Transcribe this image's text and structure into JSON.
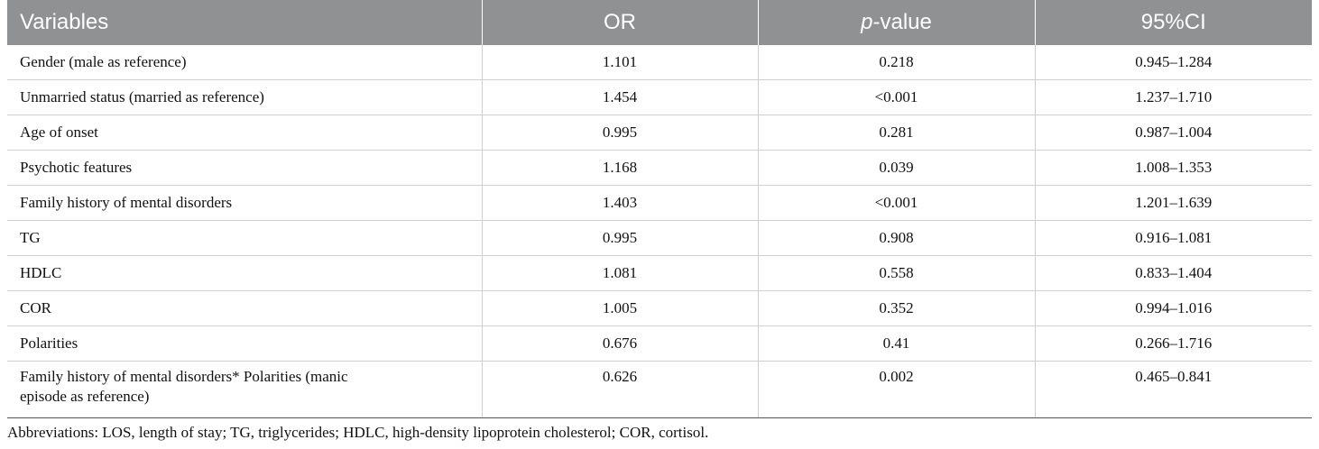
{
  "table": {
    "headers": {
      "variables": "Variables",
      "or": "OR",
      "p_prefix": "p",
      "p_suffix": "-value",
      "ci": "95%CI"
    },
    "rows": [
      {
        "variable": "Gender (male as reference)",
        "or": "1.101",
        "p": "0.218",
        "ci": "0.945–1.284"
      },
      {
        "variable": "Unmarried status (married as reference)",
        "or": "1.454",
        "p": "<0.001",
        "ci": "1.237–1.710"
      },
      {
        "variable": "Age of onset",
        "or": "0.995",
        "p": "0.281",
        "ci": "0.987–1.004"
      },
      {
        "variable": "Psychotic features",
        "or": "1.168",
        "p": "0.039",
        "ci": "1.008–1.353"
      },
      {
        "variable": "Family history of mental disorders",
        "or": "1.403",
        "p": "<0.001",
        "ci": "1.201–1.639"
      },
      {
        "variable": "TG",
        "or": "0.995",
        "p": "0.908",
        "ci": "0.916–1.081"
      },
      {
        "variable": "HDLC",
        "or": "1.081",
        "p": "0.558",
        "ci": "0.833–1.404"
      },
      {
        "variable": "COR",
        "or": "1.005",
        "p": "0.352",
        "ci": "0.994–1.016"
      },
      {
        "variable": "Polarities",
        "or": "0.676",
        "p": "0.41",
        "ci": "0.266–1.716"
      },
      {
        "variable_line1": "Family history of mental disorders* Polarities (manic",
        "variable_line2": "episode as reference)",
        "or": "0.626",
        "p": "0.002",
        "ci": "0.465–0.841"
      }
    ]
  },
  "footnote": "Abbreviations: LOS, length of stay; TG, triglycerides; HDLC, high-density lipoprotein cholesterol; COR, cortisol."
}
